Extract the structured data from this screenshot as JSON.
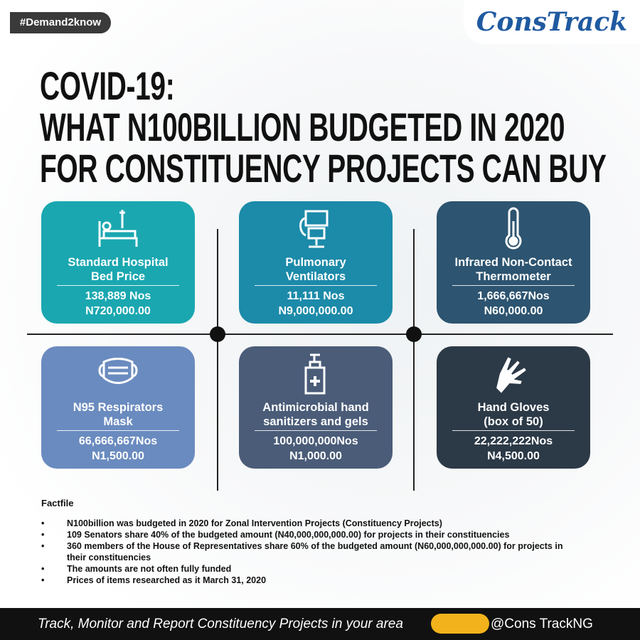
{
  "header": {
    "tag": "#Demand2know",
    "logo": "ConsTrack",
    "title": [
      "COVID-19:",
      "WHAT N100BILLION BUDGETED IN 2020",
      "FOR CONSTITUENCY PROJECTS CAN BUY"
    ]
  },
  "cards": [
    {
      "name": [
        "Standard Hospital",
        "Bed Price"
      ],
      "quantity": "138,889 Nos",
      "price": "N720,000.00"
    },
    {
      "name": [
        "Pulmonary",
        "Ventilators"
      ],
      "quantity": "11,111 Nos",
      "price": "N9,000,000.00"
    },
    {
      "name": [
        "Infrared Non-Contact",
        "Thermometer"
      ],
      "quantity": "1,666,667Nos",
      "price": "N60,000.00"
    },
    {
      "name": [
        "N95 Respirators",
        "Mask"
      ],
      "quantity": "66,666,667Nos",
      "price": "N1,500.00"
    },
    {
      "name": [
        "Antimicrobial hand",
        "sanitizers and gels"
      ],
      "quantity": "100,000,000Nos",
      "price": "N1,000.00"
    },
    {
      "name": [
        "Hand Gloves",
        "(box of 50)"
      ],
      "quantity": "22,222,222Nos",
      "price": "N4,500.00"
    }
  ],
  "factfile": {
    "title": "Factfile",
    "items": [
      "N100billion was budgeted in 2020 for Zonal Intervention Projects (Constituency Projects)",
      "109 Senators share 40% of the budgeted amount (N40,000,000,000.00) for projects in their constituencies",
      "360 members of the House of Representatives share 60% of the budgeted amount (N60,000,000,000.00) for projects in their constituencies",
      "The amounts are not often fully funded",
      "Prices of items researched as it March 31, 2020"
    ]
  },
  "footer": {
    "slogan": "Track, Monitor and Report Constituency Projects in your area",
    "handle": "@Cons TrackNG"
  }
}
